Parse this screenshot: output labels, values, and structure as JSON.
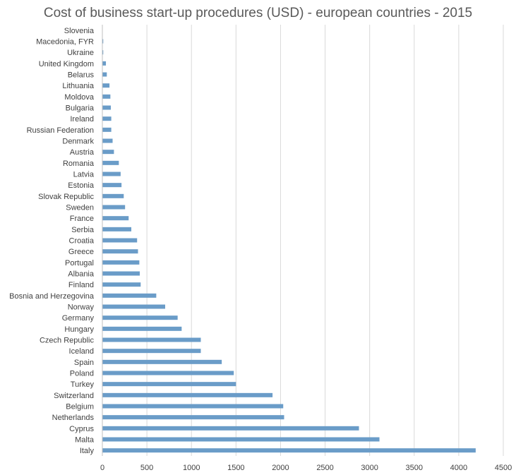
{
  "chart_data": {
    "type": "bar",
    "orientation": "horizontal",
    "title": "Cost of business start-up procedures (USD) - european countries - 2015",
    "xlabel": "",
    "ylabel": "",
    "xlim": [
      0,
      4500
    ],
    "xticks": [
      0,
      500,
      1000,
      1500,
      2000,
      2500,
      3000,
      3500,
      4000,
      4500
    ],
    "grid": "vertical",
    "legend": "none",
    "bar_color": "#6a9cc8",
    "grid_color": "#d9d9d9",
    "categories": [
      "Slovenia",
      "Macedonia, FYR",
      "Ukraine",
      "United Kingdom",
      "Belarus",
      "Lithuania",
      "Moldova",
      "Bulgaria",
      "Ireland",
      "Russian Federation",
      "Denmark",
      "Austria",
      "Romania",
      "Latvia",
      "Estonia",
      "Slovak Republic",
      "Sweden",
      "France",
      "Serbia",
      "Croatia",
      "Greece",
      "Portugal",
      "Albania",
      "Finland",
      "Bosnia and Herzegovina",
      "Norway",
      "Germany",
      "Hungary",
      "Czech Republic",
      "Iceland",
      "Spain",
      "Poland",
      "Turkey",
      "Switzerland",
      "Belgium",
      "Netherlands",
      "Cyprus",
      "Malta",
      "Italy"
    ],
    "values": [
      0,
      10,
      10,
      40,
      50,
      80,
      90,
      95,
      100,
      100,
      115,
      130,
      185,
      205,
      215,
      240,
      255,
      295,
      325,
      390,
      400,
      415,
      420,
      430,
      605,
      705,
      845,
      890,
      1105,
      1105,
      1340,
      1475,
      1500,
      1910,
      2030,
      2040,
      2880,
      3110,
      4190
    ]
  }
}
